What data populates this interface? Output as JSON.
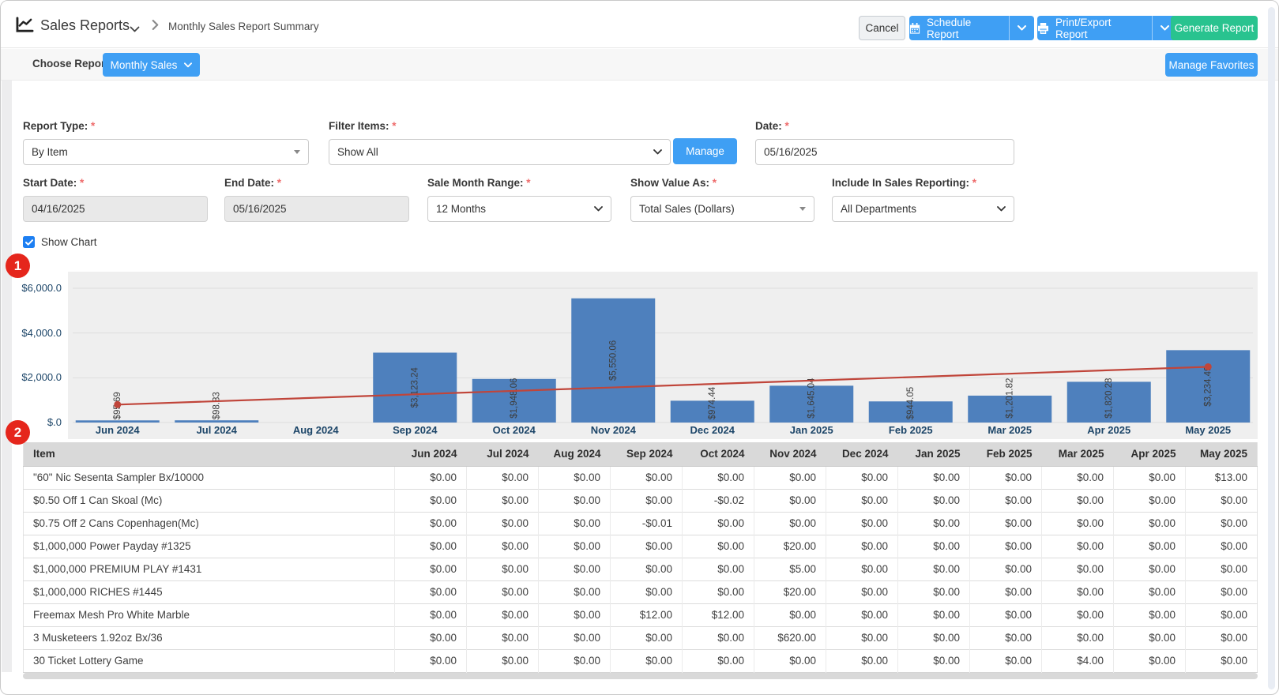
{
  "header": {
    "app_title": "Sales Reports",
    "breadcrumb": "Monthly Sales Report Summary",
    "cancel_label": "Cancel",
    "schedule_label": "Schedule Report",
    "print_label": "Print/Export Report",
    "generate_label": "Generate Report"
  },
  "subbar": {
    "choose_report_label": "Choose Report",
    "report_select_label": "Monthly Sales",
    "manage_favorites_label": "Manage Favorites"
  },
  "filters": {
    "report_type": {
      "label": "Report Type:",
      "value": "By Item"
    },
    "filter_items": {
      "label": "Filter Items:",
      "value": "Show All",
      "manage_label": "Manage"
    },
    "date": {
      "label": "Date:",
      "value": "05/16/2025"
    },
    "start_date": {
      "label": "Start Date:",
      "value": "04/16/2025"
    },
    "end_date": {
      "label": "End Date:",
      "value": "05/16/2025"
    },
    "sale_month_range": {
      "label": "Sale Month Range:",
      "value": "12 Months"
    },
    "show_value_as": {
      "label": "Show Value As:",
      "value": "Total Sales (Dollars)"
    },
    "include_in_sales_reporting": {
      "label": "Include In Sales Reporting:",
      "value": "All Departments"
    }
  },
  "show_chart": {
    "label": "Show Chart",
    "checked": true
  },
  "annotations": {
    "badge1": "1",
    "badge2": "2"
  },
  "chart_data": {
    "type": "bar",
    "categories": [
      "Jun 2024",
      "Jul 2024",
      "Aug 2024",
      "Sep 2024",
      "Oct 2024",
      "Nov 2024",
      "Dec 2024",
      "Jan 2025",
      "Feb 2025",
      "Mar 2025",
      "Apr 2025",
      "May 2025"
    ],
    "values": [
      95.69,
      98.83,
      0,
      3123.24,
      1948.06,
      5550.06,
      974.44,
      1645.04,
      944.05,
      1201.82,
      1820.28,
      3234.49
    ],
    "bar_labels": [
      "$95.69",
      "$98.83",
      "",
      "$3,123.24",
      "$1,948.06",
      "$5,550.06",
      "$974.44",
      "$1,645.04",
      "$944.05",
      "$1,201.82",
      "$1,820.28",
      "$3,234.49"
    ],
    "yticks": [
      {
        "label": "$6,000.0",
        "value": 6000
      },
      {
        "label": "$4,000.0",
        "value": 4000
      },
      {
        "label": "$2,000.0",
        "value": 2000
      },
      {
        "label": "$.0",
        "value": 0
      }
    ],
    "ylim": [
      0,
      6000
    ],
    "grid": true,
    "bar_color": "#4e80bd",
    "label_color": "#3d3d3d",
    "axis_color": "#1c4568",
    "trend_line": {
      "start_value": 800,
      "end_value": 2490,
      "color": "#c0453a"
    },
    "title": "",
    "xlabel": "",
    "ylabel": ""
  },
  "table": {
    "columns": [
      "Item",
      "Jun 2024",
      "Jul 2024",
      "Aug 2024",
      "Sep 2024",
      "Oct 2024",
      "Nov 2024",
      "Dec 2024",
      "Jan 2025",
      "Feb 2025",
      "Mar 2025",
      "Apr 2025",
      "May 2025"
    ],
    "rows": [
      {
        "item": "\"60\" Nic Sesenta Sampler Bx/10000",
        "values": [
          "$0.00",
          "$0.00",
          "$0.00",
          "$0.00",
          "$0.00",
          "$0.00",
          "$0.00",
          "$0.00",
          "$0.00",
          "$0.00",
          "$0.00",
          "$13.00"
        ]
      },
      {
        "item": "$0.50 Off 1 Can Skoal (Mc)",
        "values": [
          "$0.00",
          "$0.00",
          "$0.00",
          "$0.00",
          "-$0.02",
          "$0.00",
          "$0.00",
          "$0.00",
          "$0.00",
          "$0.00",
          "$0.00",
          "$0.00"
        ]
      },
      {
        "item": "$0.75 Off 2 Cans Copenhagen(Mc)",
        "values": [
          "$0.00",
          "$0.00",
          "$0.00",
          "-$0.01",
          "$0.00",
          "$0.00",
          "$0.00",
          "$0.00",
          "$0.00",
          "$0.00",
          "$0.00",
          "$0.00"
        ]
      },
      {
        "item": "$1,000,000 Power Payday #1325",
        "values": [
          "$0.00",
          "$0.00",
          "$0.00",
          "$0.00",
          "$0.00",
          "$20.00",
          "$0.00",
          "$0.00",
          "$0.00",
          "$0.00",
          "$0.00",
          "$0.00"
        ]
      },
      {
        "item": "$1,000,000 PREMIUM PLAY #1431",
        "values": [
          "$0.00",
          "$0.00",
          "$0.00",
          "$0.00",
          "$0.00",
          "$5.00",
          "$0.00",
          "$0.00",
          "$0.00",
          "$0.00",
          "$0.00",
          "$0.00"
        ]
      },
      {
        "item": "$1,000,000 RICHES #1445",
        "values": [
          "$0.00",
          "$0.00",
          "$0.00",
          "$0.00",
          "$0.00",
          "$20.00",
          "$0.00",
          "$0.00",
          "$0.00",
          "$0.00",
          "$0.00",
          "$0.00"
        ]
      },
      {
        "item": "Freemax Mesh Pro White Marble",
        "values": [
          "$0.00",
          "$0.00",
          "$0.00",
          "$12.00",
          "$12.00",
          "$0.00",
          "$0.00",
          "$0.00",
          "$0.00",
          "$0.00",
          "$0.00",
          "$0.00"
        ]
      },
      {
        "item": "3 Musketeers 1.92oz Bx/36",
        "values": [
          "$0.00",
          "$0.00",
          "$0.00",
          "$0.00",
          "$0.00",
          "$620.00",
          "$0.00",
          "$0.00",
          "$0.00",
          "$0.00",
          "$0.00",
          "$0.00"
        ]
      },
      {
        "item": "30 Ticket Lottery Game",
        "values": [
          "$0.00",
          "$0.00",
          "$0.00",
          "$0.00",
          "$0.00",
          "$0.00",
          "$0.00",
          "$0.00",
          "$0.00",
          "$4.00",
          "$0.00",
          "$0.00"
        ]
      }
    ]
  }
}
